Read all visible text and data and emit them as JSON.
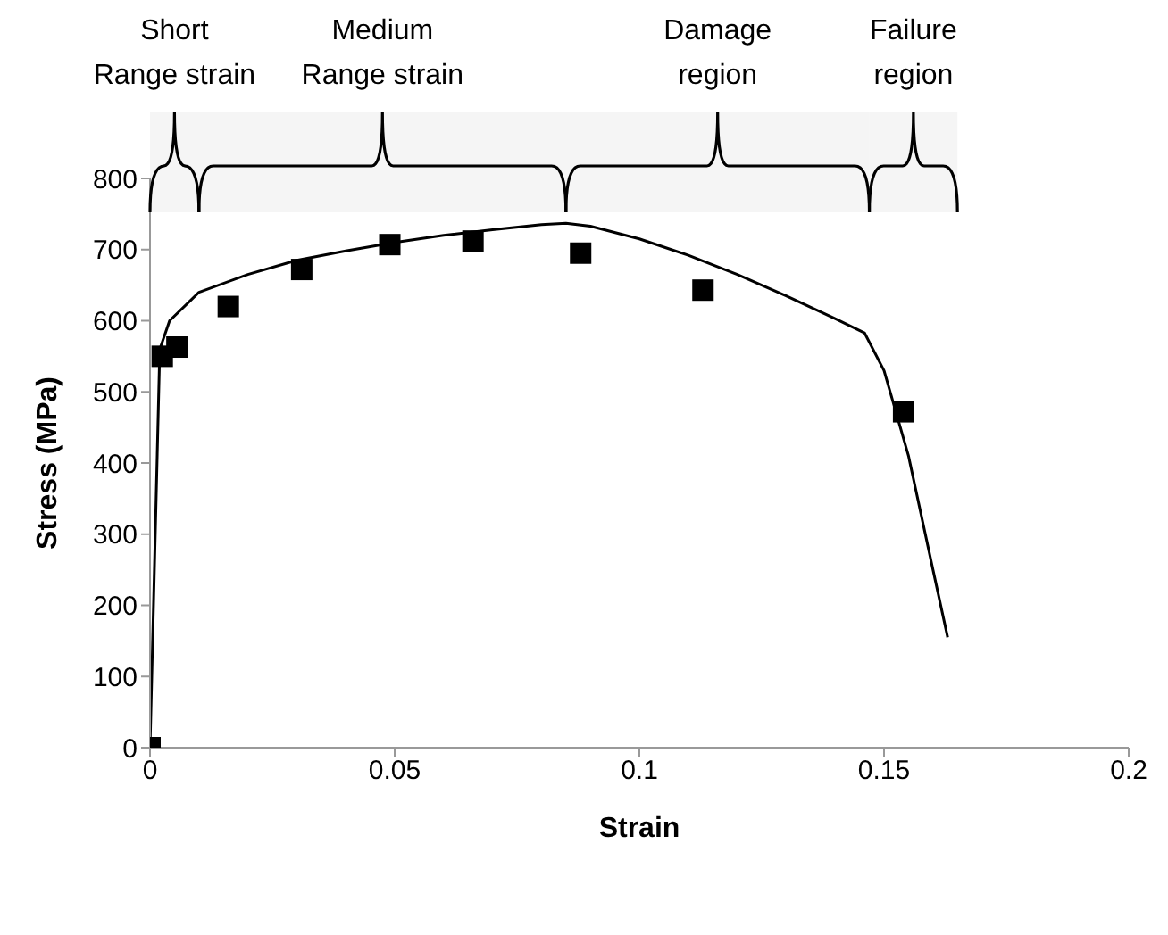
{
  "chart_data": {
    "type": "line",
    "xlabel": "Strain",
    "ylabel": "Stress (MPa)",
    "xlim": [
      0,
      0.2
    ],
    "xticks": [
      0,
      0.05,
      0.1,
      0.15,
      0.2
    ],
    "ylim": [
      0,
      800
    ],
    "yticks": [
      0,
      100,
      200,
      300,
      400,
      500,
      600,
      700,
      800
    ],
    "grid": false,
    "legend": false,
    "series": [
      {
        "type": "line",
        "color": "#000000",
        "marker": "none",
        "x": [
          0,
          0.002,
          0.004,
          0.01,
          0.02,
          0.03,
          0.04,
          0.05,
          0.06,
          0.07,
          0.08,
          0.085,
          0.09,
          0.1,
          0.11,
          0.12,
          0.13,
          0.14,
          0.146,
          0.15,
          0.155,
          0.16,
          0.163
        ],
        "values": [
          0,
          560,
          600,
          640,
          665,
          685,
          698,
          710,
          720,
          728,
          735,
          737,
          733,
          715,
          692,
          665,
          635,
          603,
          583,
          530,
          410,
          250,
          155
        ]
      },
      {
        "type": "scatter",
        "color": "#000000",
        "marker": "square",
        "x": [
          0,
          0.0025,
          0.0055,
          0.016,
          0.031,
          0.049,
          0.066,
          0.088,
          0.113,
          0.154
        ],
        "values": [
          0,
          550,
          563,
          620,
          672,
          707,
          712,
          695,
          643,
          472
        ]
      }
    ],
    "bands": [
      {
        "axis": "x",
        "from": 0,
        "to": 0.01,
        "label": "Short\nRange strain"
      },
      {
        "axis": "x",
        "from": 0.01,
        "to": 0.085,
        "label": "Medium\nRange strain"
      },
      {
        "axis": "x",
        "from": 0.085,
        "to": 0.147,
        "label": "Damage\nregion"
      },
      {
        "axis": "x",
        "from": 0.147,
        "to": 0.165,
        "label": "Failure\nregion"
      }
    ]
  }
}
